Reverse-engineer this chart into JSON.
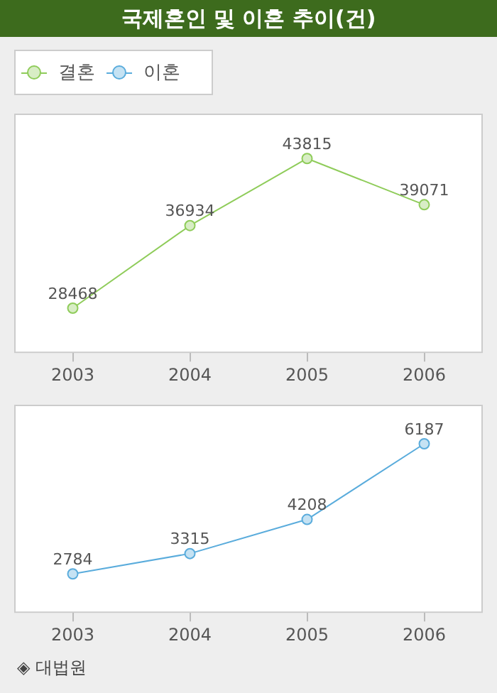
{
  "chart_data": [
    {
      "type": "line",
      "title": "국제혼인 및 이혼 추이(건)",
      "categories": [
        "2003",
        "2004",
        "2005",
        "2006"
      ],
      "series": [
        {
          "name": "결혼",
          "color": "#8fcc5a",
          "values": [
            28468,
            36934,
            43815,
            39071
          ]
        }
      ],
      "data_labels": true,
      "tick_labels": "x",
      "grid": false,
      "legend": "top left",
      "marker": "circle",
      "line_style": "solid"
    },
    {
      "type": "line",
      "categories": [
        "2003",
        "2004",
        "2005",
        "2006"
      ],
      "series": [
        {
          "name": "이혼",
          "color": "#5aacdc",
          "values": [
            2784,
            3315,
            4208,
            6187
          ]
        }
      ],
      "data_labels": true,
      "tick_labels": "x",
      "grid": false,
      "marker": "circle",
      "line_style": "solid",
      "annotations": [
        "◈ 대법원"
      ]
    }
  ]
}
